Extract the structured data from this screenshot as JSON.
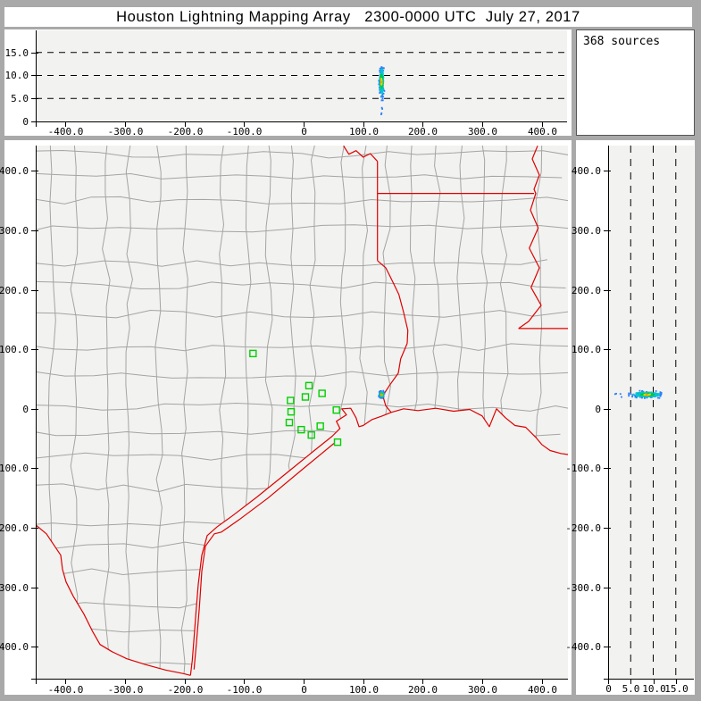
{
  "window": {
    "title": "Houston Lightning Mapping Array   2300-0000 UTC  July 27, 2017"
  },
  "sources_box": {
    "label": "368 sources"
  },
  "palette": {
    "background": "#a9a9a9",
    "panel": "#ffffff",
    "plot_bg": "#f2f2f0",
    "axis": "#000000",
    "grid_dash": "#000000",
    "county_line": "#a4a4a4",
    "state_border": "#dd0000",
    "station": "#00d000",
    "density_scale": [
      "#2b7bff",
      "#00c8c8",
      "#00c83c",
      "#d8d800",
      "#ff9900"
    ]
  },
  "chart_data": {
    "type": "scatter",
    "layout": "lma-three-panel",
    "title": "Houston Lightning Mapping Array   2300-0000 UTC  July 27, 2017",
    "source_count": 368,
    "sources_label": "368 sources",
    "panels": [
      {
        "id": "alt-vs-ew",
        "desc": "altitude vs east-west distance",
        "x_axis": "east_west_km",
        "y_axis": "altitude_top_km"
      },
      {
        "id": "plan-view",
        "desc": "plan view map with counties, state borders, LMA stations and lightning sources",
        "x_axis": "east_west_km",
        "y_axis": "north_south_km"
      },
      {
        "id": "alt-vs-ns",
        "desc": "north-south distance vs altitude",
        "x_axis": "altitude_right_km",
        "y_axis": "north_south_km"
      }
    ],
    "axes": {
      "east_west_km": {
        "range": [
          -450,
          444
        ],
        "tick_values": [
          -400,
          -300,
          -200,
          -100,
          0,
          100,
          200,
          300,
          400
        ],
        "tick_labels": [
          "-400.0",
          "-300.0",
          "-200.0",
          "-100.0",
          "0",
          "100.0",
          "200.0",
          "300.0",
          "400.0"
        ]
      },
      "north_south_km": {
        "range": [
          -453.5,
          442.5
        ],
        "tick_values": [
          400,
          300,
          200,
          100,
          0,
          -100,
          -200,
          -300,
          -400
        ],
        "tick_labels": [
          "400.0",
          "300.0",
          "200.0",
          "100.0",
          "0",
          "-100.0",
          "-200.0",
          "-300.0",
          "-400.0"
        ]
      },
      "altitude_top_km": {
        "range": [
          0,
          19.8
        ],
        "tick_values": [
          0,
          5,
          10,
          15
        ],
        "tick_labels": [
          "0",
          "5.0",
          "10.0",
          "15.0"
        ],
        "gridlines": [
          5,
          10,
          15
        ]
      },
      "altitude_right_km": {
        "range": [
          0,
          19.0
        ],
        "tick_values": [
          0,
          5,
          10,
          15
        ],
        "tick_labels": [
          "0",
          "5.0",
          "10.0",
          "15.0"
        ],
        "gridlines": [
          5,
          10,
          15
        ]
      }
    },
    "cluster": {
      "count": 368,
      "east_mean_km": 131,
      "east_sd_km": 1.6,
      "north_mean_km": 24,
      "north_sd_km": 2.1,
      "alt_mean_km": 8.6,
      "alt_sd_km": 1.5,
      "alt_min_km": 4.6,
      "alt_max_km": 11.8,
      "low_outlier_fraction": 0.02,
      "low_outlier_alt_km": 2.0,
      "low_outlier_alt_sd_km": 0.8
    },
    "stations_km": [
      [
        -85,
        93
      ],
      [
        9,
        39
      ],
      [
        3,
        20
      ],
      [
        31,
        26
      ],
      [
        55,
        -2
      ],
      [
        -22,
        14
      ],
      [
        -21,
        -5
      ],
      [
        -24,
        -23
      ],
      [
        -4,
        -35
      ],
      [
        28,
        -29
      ],
      [
        13,
        -44
      ],
      [
        57,
        -56
      ]
    ],
    "borders_km": {
      "red_river": [
        [
          67,
          442
        ],
        [
          76,
          428
        ],
        [
          88,
          434
        ],
        [
          100,
          423
        ],
        [
          112,
          429
        ],
        [
          124,
          416
        ]
      ],
      "ok_ar_border": [
        [
          124,
          416
        ],
        [
          124,
          249
        ]
      ],
      "ar_north_border": [
        [
          124,
          362
        ],
        [
          387,
          362
        ]
      ],
      "tx_ar_border": [
        [
          124,
          249
        ],
        [
          138,
          237
        ],
        [
          147,
          219
        ],
        [
          160,
          192
        ],
        [
          168,
          162
        ],
        [
          175,
          132
        ],
        [
          174,
          110
        ]
      ],
      "sabine_tx_la": [
        [
          174,
          110
        ],
        [
          163,
          84
        ],
        [
          159,
          60
        ],
        [
          144,
          39
        ],
        [
          133,
          22
        ],
        [
          138,
          5
        ],
        [
          147,
          -6
        ]
      ],
      "mississippi_river": [
        [
          393,
          442
        ],
        [
          384,
          420
        ],
        [
          396,
          393
        ],
        [
          387,
          369
        ],
        [
          390,
          362
        ],
        [
          381,
          334
        ],
        [
          394,
          304
        ],
        [
          379,
          270
        ],
        [
          396,
          237
        ],
        [
          382,
          204
        ],
        [
          399,
          174
        ],
        [
          378,
          147
        ],
        [
          361,
          135
        ]
      ],
      "ar_la_border": [
        [
          361,
          135
        ],
        [
          452,
          135
        ]
      ],
      "gulf_coast": [
        [
          -190,
          -448
        ],
        [
          -187,
          -423
        ],
        [
          -184,
          -385
        ],
        [
          -181,
          -345
        ],
        [
          -177,
          -295
        ],
        [
          -171,
          -246
        ],
        [
          -162,
          -213
        ],
        [
          -145,
          -198
        ],
        [
          -120,
          -180
        ],
        [
          -78,
          -148
        ],
        [
          -30,
          -109
        ],
        [
          18,
          -70
        ],
        [
          48,
          -46
        ],
        [
          61,
          -33
        ],
        [
          55,
          -21
        ],
        [
          72,
          -10
        ],
        [
          64,
          0
        ],
        [
          79,
          1
        ],
        [
          88,
          -15
        ],
        [
          93,
          -30
        ],
        [
          100,
          -28
        ],
        [
          115,
          -18
        ],
        [
          132,
          -12
        ],
        [
          147,
          -6
        ],
        [
          168,
          0
        ],
        [
          192,
          -3
        ],
        [
          222,
          1
        ],
        [
          252,
          -4
        ],
        [
          279,
          -1
        ],
        [
          300,
          -12
        ],
        [
          312,
          -30
        ],
        [
          324,
          0
        ],
        [
          339,
          -15
        ],
        [
          355,
          -28
        ],
        [
          373,
          -31
        ],
        [
          390,
          -48
        ],
        [
          400,
          -60
        ],
        [
          414,
          -70
        ],
        [
          432,
          -75
        ],
        [
          452,
          -78
        ]
      ],
      "barrier_island": [
        [
          51,
          -58
        ],
        [
          0,
          -100
        ],
        [
          -60,
          -150
        ],
        [
          -108,
          -186
        ],
        [
          -138,
          -207
        ],
        [
          -150,
          -210
        ],
        [
          -165,
          -231
        ],
        [
          -171,
          -273
        ],
        [
          -175,
          -333
        ],
        [
          -180,
          -393
        ],
        [
          -184,
          -438
        ]
      ],
      "rio_grande": [
        [
          -450,
          -195
        ],
        [
          -432,
          -210
        ],
        [
          -420,
          -228
        ],
        [
          -408,
          -246
        ],
        [
          -405,
          -270
        ],
        [
          -399,
          -291
        ],
        [
          -387,
          -315
        ],
        [
          -369,
          -345
        ],
        [
          -355,
          -373
        ],
        [
          -342,
          -396
        ],
        [
          -322,
          -408
        ],
        [
          -297,
          -420
        ],
        [
          -265,
          -430
        ],
        [
          -232,
          -439
        ],
        [
          -202,
          -445
        ],
        [
          -190,
          -448
        ]
      ]
    }
  }
}
